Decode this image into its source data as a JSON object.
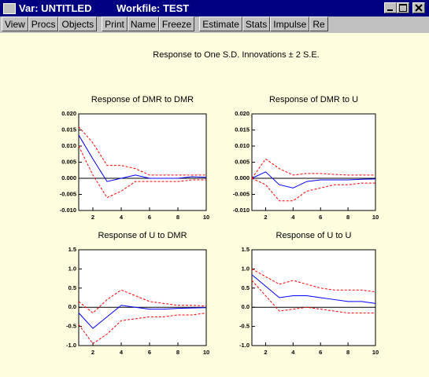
{
  "window": {
    "title": "Var: UNTITLED",
    "workfile": "Workfile: TEST",
    "toolbar": [
      [
        "View",
        "Procs",
        "Objects"
      ],
      [
        "Print",
        "Name",
        "Freeze"
      ],
      [
        "Estimate",
        "Stats",
        "Impulse",
        "Re"
      ]
    ],
    "heading": "Response to One S.D. Innovations ± 2 S.E."
  },
  "chart_data": [
    {
      "type": "line",
      "title": "Response of DMR to DMR",
      "x": [
        1,
        2,
        3,
        4,
        5,
        6,
        7,
        8,
        9,
        10
      ],
      "xlim": [
        1,
        10
      ],
      "xticks": [
        2,
        4,
        6,
        8,
        10
      ],
      "ylim": [
        -0.01,
        0.02
      ],
      "yticks": [
        {
          "value": 0.02,
          "label": "0.020"
        },
        {
          "value": 0.015,
          "label": "0.015"
        },
        {
          "value": 0.01,
          "label": "0.010"
        },
        {
          "value": 0.005,
          "label": "0.005"
        },
        {
          "value": 0,
          "label": "0.000"
        },
        {
          "value": -0.005,
          "label": "-0.005"
        },
        {
          "value": -0.01,
          "label": "-0.010"
        }
      ],
      "zero_line": true,
      "series": [
        {
          "color": "#0000ff",
          "dashed": false,
          "values": [
            0.0134,
            0.006,
            -0.001,
            0.0,
            0.001,
            0.0,
            0.0,
            0.0,
            0.0005,
            0.0003
          ]
        },
        {
          "color": "#ff0000",
          "dashed": true,
          "values": [
            0.016,
            0.011,
            0.004,
            0.004,
            0.003,
            0.001,
            0.001,
            0.001,
            0.001,
            0.001
          ]
        },
        {
          "color": "#ff0000",
          "dashed": true,
          "values": [
            0.01,
            0.001,
            -0.006,
            -0.004,
            -0.001,
            -0.001,
            -0.001,
            -0.001,
            -0.0005,
            -0.0005
          ]
        }
      ]
    },
    {
      "type": "line",
      "title": "Response of DMR to U",
      "x": [
        1,
        2,
        3,
        4,
        5,
        6,
        7,
        8,
        9,
        10
      ],
      "xlim": [
        1,
        10
      ],
      "xticks": [
        2,
        4,
        6,
        8,
        10
      ],
      "ylim": [
        -0.01,
        0.02
      ],
      "yticks": [
        {
          "value": 0.02,
          "label": "0.020"
        },
        {
          "value": 0.015,
          "label": "0.015"
        },
        {
          "value": 0.01,
          "label": "0.010"
        },
        {
          "value": 0.005,
          "label": "0.005"
        },
        {
          "value": 0,
          "label": "0.000"
        },
        {
          "value": -0.005,
          "label": "-0.005"
        },
        {
          "value": -0.01,
          "label": "-0.010"
        }
      ],
      "zero_line": true,
      "series": [
        {
          "color": "#0000ff",
          "dashed": false,
          "values": [
            0.0,
            0.002,
            -0.002,
            -0.003,
            -0.001,
            -0.0005,
            -0.0005,
            -0.0005,
            -0.0003,
            -0.0002
          ]
        },
        {
          "color": "#ff0000",
          "dashed": true,
          "values": [
            0.0,
            0.006,
            0.003,
            0.001,
            0.0015,
            0.0015,
            0.0012,
            0.001,
            0.001,
            0.001
          ]
        },
        {
          "color": "#ff0000",
          "dashed": true,
          "values": [
            0.0,
            -0.002,
            -0.007,
            -0.007,
            -0.004,
            -0.003,
            -0.002,
            -0.002,
            -0.0015,
            -0.0015
          ]
        }
      ]
    },
    {
      "type": "line",
      "title": "Response of U to DMR",
      "x": [
        1,
        2,
        3,
        4,
        5,
        6,
        7,
        8,
        9,
        10
      ],
      "xlim": [
        1,
        10
      ],
      "xticks": [
        2,
        4,
        6,
        8,
        10
      ],
      "ylim": [
        -1.0,
        1.5
      ],
      "yticks": [
        1.5,
        {
          "value": 1.0,
          "label": "1.0"
        },
        0.5,
        {
          "value": 0,
          "label": "0.0"
        },
        -0.5,
        {
          "value": -1.0,
          "label": "-1.0"
        }
      ],
      "zero_line": true,
      "series": [
        {
          "color": "#0000ff",
          "dashed": false,
          "values": [
            -0.15,
            -0.55,
            -0.25,
            0.05,
            0.0,
            -0.05,
            -0.05,
            -0.03,
            -0.02,
            -0.01
          ]
        },
        {
          "color": "#ff0000",
          "dashed": true,
          "values": [
            0.15,
            -0.15,
            0.2,
            0.45,
            0.3,
            0.15,
            0.1,
            0.05,
            0.05,
            0.03
          ]
        },
        {
          "color": "#ff0000",
          "dashed": true,
          "values": [
            -0.45,
            -0.95,
            -0.7,
            -0.35,
            -0.3,
            -0.25,
            -0.25,
            -0.2,
            -0.2,
            -0.15
          ]
        }
      ]
    },
    {
      "type": "line",
      "title": "Response of U to U",
      "x": [
        1,
        2,
        3,
        4,
        5,
        6,
        7,
        8,
        9,
        10
      ],
      "xlim": [
        1,
        10
      ],
      "xticks": [
        2,
        4,
        6,
        8,
        10
      ],
      "ylim": [
        -1.0,
        1.5
      ],
      "yticks": [
        1.5,
        {
          "value": 1.0,
          "label": "1.0"
        },
        0.5,
        {
          "value": 0,
          "label": "0.0"
        },
        -0.5,
        {
          "value": -1.0,
          "label": "-1.0"
        }
      ],
      "zero_line": true,
      "series": [
        {
          "color": "#0000ff",
          "dashed": false,
          "values": [
            0.85,
            0.55,
            0.25,
            0.3,
            0.3,
            0.25,
            0.2,
            0.15,
            0.15,
            0.1
          ]
        },
        {
          "color": "#ff0000",
          "dashed": true,
          "values": [
            1.0,
            0.8,
            0.6,
            0.7,
            0.6,
            0.5,
            0.45,
            0.45,
            0.45,
            0.4
          ]
        },
        {
          "color": "#ff0000",
          "dashed": true,
          "values": [
            0.7,
            0.3,
            -0.1,
            -0.05,
            0.0,
            -0.05,
            -0.1,
            -0.15,
            -0.15,
            -0.15
          ]
        }
      ]
    }
  ]
}
